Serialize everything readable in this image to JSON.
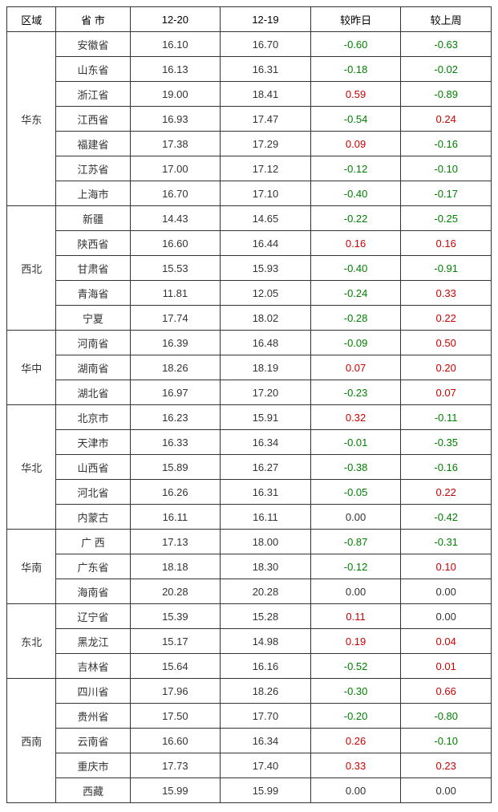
{
  "colors": {
    "positive": "#cc0000",
    "negative": "#008000",
    "zero": "#333333",
    "text": "#333333"
  },
  "headers": {
    "region": "区域",
    "province": "省 市",
    "col1": "12-20",
    "col2": "12-19",
    "delta_day": "较昨日",
    "delta_week": "较上周"
  },
  "regions": [
    {
      "name": "华东",
      "rows": [
        {
          "province": "安徽省",
          "c1": "16.10",
          "c2": "16.70",
          "dd": "-0.60",
          "dw": "-0.63"
        },
        {
          "province": "山东省",
          "c1": "16.13",
          "c2": "16.31",
          "dd": "-0.18",
          "dw": "-0.02"
        },
        {
          "province": "浙江省",
          "c1": "19.00",
          "c2": "18.41",
          "dd": "0.59",
          "dw": "-0.89"
        },
        {
          "province": "江西省",
          "c1": "16.93",
          "c2": "17.47",
          "dd": "-0.54",
          "dw": "0.24"
        },
        {
          "province": "福建省",
          "c1": "17.38",
          "c2": "17.29",
          "dd": "0.09",
          "dw": "-0.16"
        },
        {
          "province": "江苏省",
          "c1": "17.00",
          "c2": "17.12",
          "dd": "-0.12",
          "dw": "-0.10"
        },
        {
          "province": "上海市",
          "c1": "16.70",
          "c2": "17.10",
          "dd": "-0.40",
          "dw": "-0.17"
        }
      ]
    },
    {
      "name": "西北",
      "rows": [
        {
          "province": "新疆",
          "c1": "14.43",
          "c2": "14.65",
          "dd": "-0.22",
          "dw": "-0.25"
        },
        {
          "province": "陕西省",
          "c1": "16.60",
          "c2": "16.44",
          "dd": "0.16",
          "dw": "0.16"
        },
        {
          "province": "甘肃省",
          "c1": "15.53",
          "c2": "15.93",
          "dd": "-0.40",
          "dw": "-0.91"
        },
        {
          "province": "青海省",
          "c1": "11.81",
          "c2": "12.05",
          "dd": "-0.24",
          "dw": "0.33"
        },
        {
          "province": "宁夏",
          "c1": "17.74",
          "c2": "18.02",
          "dd": "-0.28",
          "dw": "0.22"
        }
      ]
    },
    {
      "name": "华中",
      "rows": [
        {
          "province": "河南省",
          "c1": "16.39",
          "c2": "16.48",
          "dd": "-0.09",
          "dw": "0.50"
        },
        {
          "province": "湖南省",
          "c1": "18.26",
          "c2": "18.19",
          "dd": "0.07",
          "dw": "0.20"
        },
        {
          "province": "湖北省",
          "c1": "16.97",
          "c2": "17.20",
          "dd": "-0.23",
          "dw": "0.07"
        }
      ]
    },
    {
      "name": "华北",
      "rows": [
        {
          "province": "北京市",
          "c1": "16.23",
          "c2": "15.91",
          "dd": "0.32",
          "dw": "-0.11"
        },
        {
          "province": "天津市",
          "c1": "16.33",
          "c2": "16.34",
          "dd": "-0.01",
          "dw": "-0.35"
        },
        {
          "province": "山西省",
          "c1": "15.89",
          "c2": "16.27",
          "dd": "-0.38",
          "dw": "-0.16"
        },
        {
          "province": "河北省",
          "c1": "16.26",
          "c2": "16.31",
          "dd": "-0.05",
          "dw": "0.22"
        },
        {
          "province": "内蒙古",
          "c1": "16.11",
          "c2": "16.11",
          "dd": "0.00",
          "dw": "-0.42"
        }
      ]
    },
    {
      "name": "华南",
      "rows": [
        {
          "province": "广 西",
          "c1": "17.13",
          "c2": "18.00",
          "dd": "-0.87",
          "dw": "-0.31"
        },
        {
          "province": "广东省",
          "c1": "18.18",
          "c2": "18.30",
          "dd": "-0.12",
          "dw": "0.10"
        },
        {
          "province": "海南省",
          "c1": "20.28",
          "c2": "20.28",
          "dd": "0.00",
          "dw": "0.00"
        }
      ]
    },
    {
      "name": "东北",
      "rows": [
        {
          "province": "辽宁省",
          "c1": "15.39",
          "c2": "15.28",
          "dd": "0.11",
          "dw": "0.00"
        },
        {
          "province": "黑龙江",
          "c1": "15.17",
          "c2": "14.98",
          "dd": "0.19",
          "dw": "0.04"
        },
        {
          "province": "吉林省",
          "c1": "15.64",
          "c2": "16.16",
          "dd": "-0.52",
          "dw": "0.01"
        }
      ]
    },
    {
      "name": "西南",
      "rows": [
        {
          "province": "四川省",
          "c1": "17.96",
          "c2": "18.26",
          "dd": "-0.30",
          "dw": "0.66"
        },
        {
          "province": "贵州省",
          "c1": "17.50",
          "c2": "17.70",
          "dd": "-0.20",
          "dw": "-0.80"
        },
        {
          "province": "云南省",
          "c1": "16.60",
          "c2": "16.34",
          "dd": "0.26",
          "dw": "-0.10"
        },
        {
          "province": "重庆市",
          "c1": "17.73",
          "c2": "17.40",
          "dd": "0.33",
          "dw": "0.23"
        },
        {
          "province": "西藏",
          "c1": "15.99",
          "c2": "15.99",
          "dd": "0.00",
          "dw": "0.00"
        }
      ]
    }
  ]
}
